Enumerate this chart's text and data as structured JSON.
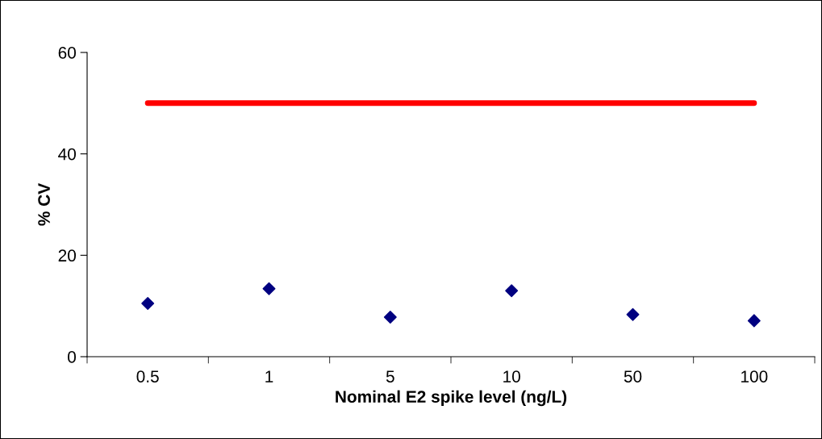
{
  "chart_data": {
    "type": "scatter",
    "xlabel": "Nominal E2 spike level (ng/L)",
    "ylabel": "% CV",
    "categories": [
      "0.5",
      "1",
      "5",
      "10",
      "50",
      "100"
    ],
    "series": [
      {
        "type": "line",
        "color": "#ff0000",
        "values": [
          50,
          50,
          50,
          50,
          50,
          50
        ],
        "marker": "none",
        "line_style": "solid"
      },
      {
        "color": "#000080",
        "values": [
          10.5,
          13.4,
          7.8,
          13.0,
          8.3,
          7.1
        ],
        "marker": "diamond"
      }
    ],
    "ylim": [
      0,
      60
    ],
    "yticks": [
      0,
      20,
      40,
      60
    ],
    "grid": false,
    "legend": false
  }
}
